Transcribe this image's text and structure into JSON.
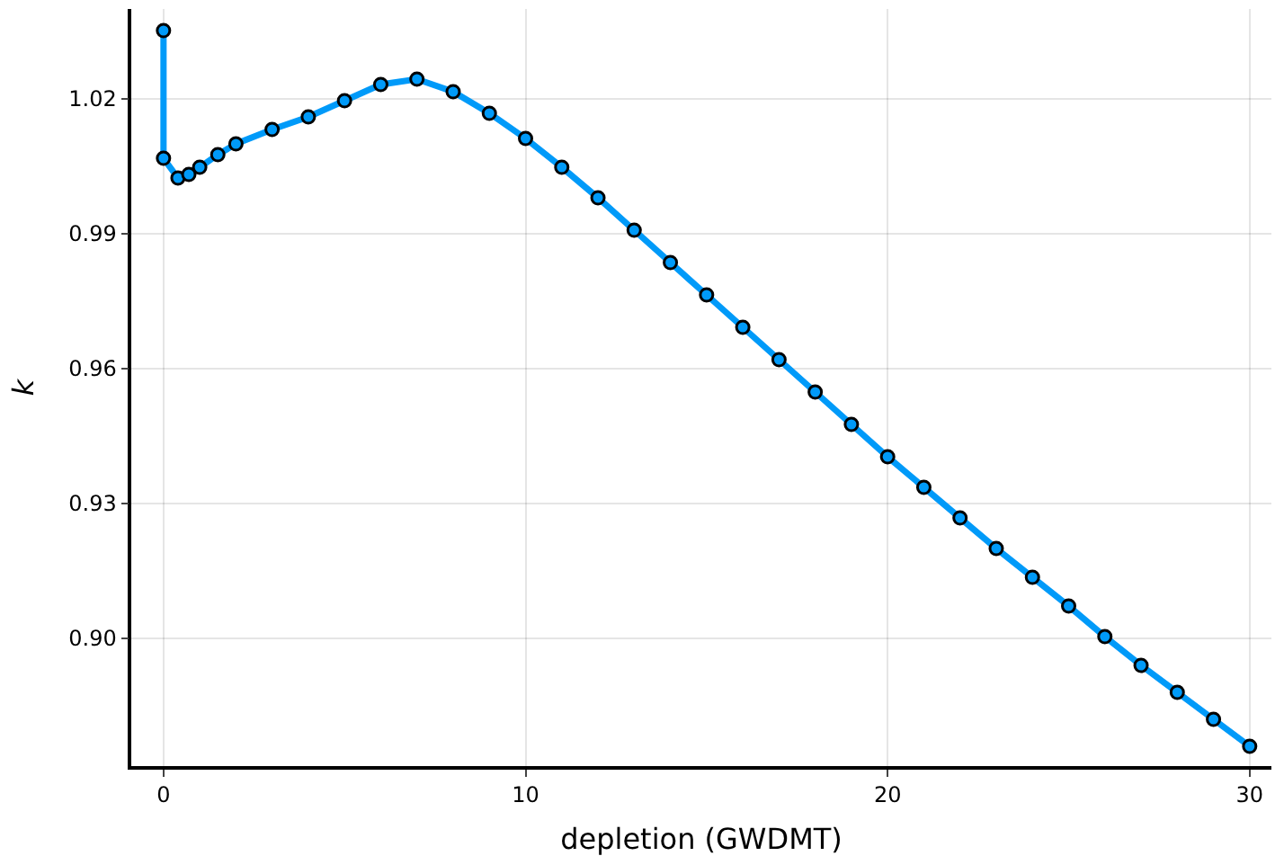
{
  "chart_data": {
    "type": "line",
    "xlabel": "depletion (GWDMT)",
    "ylabel": "k",
    "x": [
      0,
      0,
      0.4,
      0.7,
      1,
      1.5,
      2,
      3,
      4,
      5,
      6,
      7,
      8,
      9,
      10,
      11,
      12,
      13,
      14,
      15,
      16,
      17,
      18,
      19,
      20,
      21,
      22,
      23,
      24,
      25,
      26,
      27,
      28,
      29,
      30
    ],
    "series": [
      {
        "color": "#009af9",
        "values": [
          1.0352,
          1.0068,
          1.0024,
          1.0032,
          1.0048,
          1.0076,
          1.01,
          1.0132,
          1.016,
          1.0196,
          1.0232,
          1.0244,
          1.0216,
          1.0168,
          1.0112,
          1.0048,
          0.998,
          0.9908,
          0.9836,
          0.9764,
          0.9692,
          0.962,
          0.9548,
          0.9476,
          0.9404,
          0.9336,
          0.9268,
          0.92,
          0.9136,
          0.9072,
          0.9004,
          0.894,
          0.888,
          0.882,
          0.876
        ]
      }
    ],
    "xlim": [
      -0.89,
      30.6
    ],
    "xticks": [
      0,
      10,
      20,
      30
    ],
    "ylim": [
      0.8716,
      1.04
    ],
    "yticks": [
      {
        "value": 0.9,
        "label": "0.90"
      },
      {
        "value": 0.93,
        "label": "0.93"
      },
      {
        "value": 0.96,
        "label": "0.96"
      },
      {
        "value": 0.99,
        "label": "0.99"
      },
      {
        "value": 1.02,
        "label": "1.02"
      }
    ],
    "grid": true,
    "marker": "circle",
    "line_style": "solid"
  }
}
